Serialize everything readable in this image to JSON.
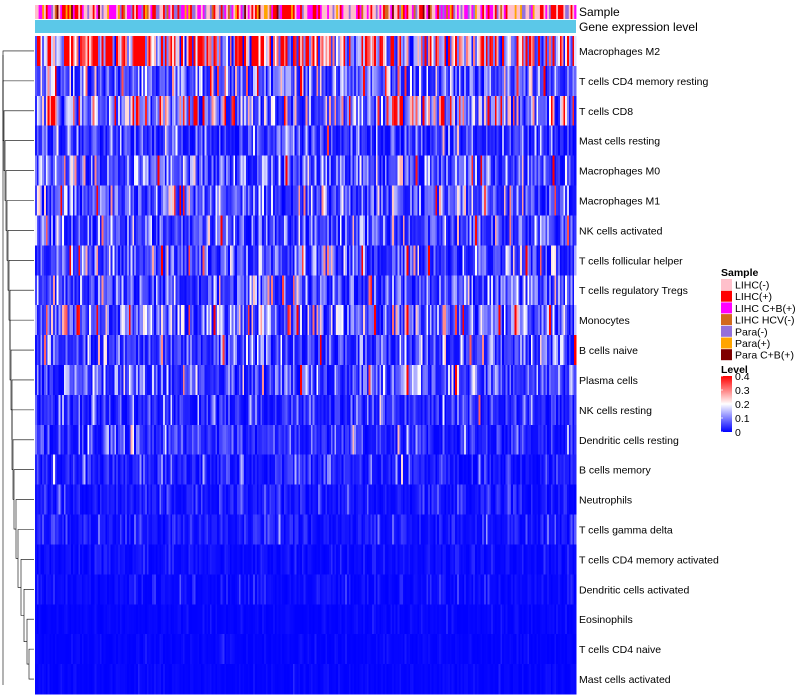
{
  "chart_data": {
    "type": "heatmap",
    "annotation_tracks": [
      "Sample",
      "Gene expression level"
    ],
    "rows": [
      "Macrophages M2",
      "T cells CD4 memory resting",
      "T cells CD8",
      "Mast cells resting",
      "Macrophages M0",
      "Macrophages M1",
      "NK cells activated",
      "T cells follicular helper",
      "T cells regulatory  Tregs",
      "Monocytes",
      "B cells naive",
      "Plasma cells",
      "NK cells resting",
      "Dendritic cells resting",
      "B cells memory",
      "Neutrophils",
      "T cells gamma delta",
      "T cells CD4 memory activated",
      "Dendritic cells activated",
      "Eosinophils",
      "T cells CD4 naive",
      "Mast cells activated"
    ],
    "row_mean_level": [
      0.3,
      0.1,
      0.17,
      0.06,
      0.08,
      0.09,
      0.07,
      0.08,
      0.07,
      0.11,
      0.07,
      0.07,
      0.04,
      0.04,
      0.03,
      0.02,
      0.02,
      0.01,
      0.01,
      0.005,
      0.005,
      0.005
    ],
    "sample_legend": {
      "title": "Sample",
      "items": [
        {
          "label": "LIHC(-)",
          "color": "#ffc0cb"
        },
        {
          "label": "LIHC(+)",
          "color": "#ff0000"
        },
        {
          "label": "LIHC C+B(+)",
          "color": "#ff00ff"
        },
        {
          "label": "LIHC HCV(-)",
          "color": "#d2691e"
        },
        {
          "label": "Para(-)",
          "color": "#9370db"
        },
        {
          "label": "Para(+)",
          "color": "#ffa500"
        },
        {
          "label": "Para C+B(+)",
          "color": "#800000"
        }
      ]
    },
    "level_legend": {
      "title": "Level",
      "ticks": [
        "0.4",
        "0.3",
        "0.2",
        "0.1",
        "0"
      ],
      "min": 0,
      "max": 0.4,
      "colors": [
        "#0000ff",
        "#ffffff",
        "#ff0000"
      ]
    },
    "gene_expression_color": "#5bc8e8",
    "n_samples": 300
  }
}
